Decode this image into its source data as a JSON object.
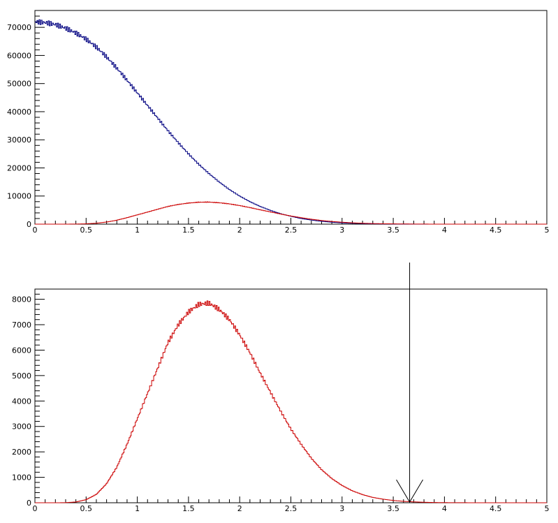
{
  "chart_data": [
    {
      "type": "line",
      "style": "step-histogram",
      "grid": false,
      "legend": "none",
      "xlim": [
        0,
        5
      ],
      "ylim": [
        0,
        76000
      ],
      "x_ticks": [
        0,
        0.5,
        1,
        1.5,
        2,
        2.5,
        3,
        3.5,
        4,
        4.5,
        5
      ],
      "x_tick_labels": [
        "0",
        "0.5",
        "1",
        "1.5",
        "2",
        "2.5",
        "3",
        "3.5",
        "4",
        "4.5",
        "5"
      ],
      "y_ticks": [
        0,
        10000,
        20000,
        30000,
        40000,
        50000,
        60000,
        70000
      ],
      "y_tick_labels": [
        "0",
        "10000",
        "20000",
        "30000",
        "40000",
        "50000",
        "60000",
        "70000"
      ],
      "series": [
        {
          "color": "#000080",
          "x": [
            0,
            0.1,
            0.2,
            0.3,
            0.4,
            0.5,
            0.6,
            0.7,
            0.8,
            0.9,
            1.0,
            1.1,
            1.2,
            1.3,
            1.4,
            1.5,
            1.6,
            1.7,
            1.8,
            1.9,
            2.0,
            2.1,
            2.2,
            2.3,
            2.4,
            2.5,
            2.6,
            2.7,
            2.8,
            2.9,
            3.0,
            3.1,
            3.2,
            3.3,
            3.4,
            3.5,
            3.6,
            3.7,
            3.8,
            3.9
          ],
          "values": [
            72000,
            71700,
            71000,
            69700,
            68000,
            65800,
            63000,
            59500,
            55500,
            51200,
            46700,
            42200,
            37700,
            33200,
            29000,
            25000,
            21300,
            18000,
            15000,
            12300,
            10000,
            8000,
            6300,
            4900,
            3700,
            2800,
            2000,
            1450,
            1000,
            680,
            450,
            300,
            190,
            120,
            75,
            45,
            25,
            15,
            8,
            4
          ]
        },
        {
          "color": "#cc0000",
          "x": [
            0.3,
            0.4,
            0.5,
            0.6,
            0.7,
            0.8,
            0.9,
            1.0,
            1.1,
            1.2,
            1.3,
            1.4,
            1.5,
            1.6,
            1.7,
            1.8,
            1.9,
            2.0,
            2.1,
            2.2,
            2.3,
            2.4,
            2.5,
            2.6,
            2.7,
            2.8,
            2.9,
            3.0,
            3.1,
            3.2,
            3.3,
            3.4,
            3.5,
            3.6,
            3.7,
            3.8,
            3.9
          ],
          "values": [
            5,
            30,
            120,
            330,
            750,
            1400,
            2300,
            3300,
            4300,
            5300,
            6300,
            7000,
            7500,
            7800,
            7850,
            7600,
            7200,
            6600,
            5900,
            5100,
            4350,
            3600,
            2900,
            2300,
            1750,
            1300,
            950,
            680,
            470,
            320,
            210,
            140,
            90,
            55,
            35,
            20,
            10
          ]
        }
      ]
    },
    {
      "type": "line",
      "style": "step-histogram",
      "grid": false,
      "legend": "none",
      "xlim": [
        0,
        5
      ],
      "ylim": [
        0,
        8400
      ],
      "x_ticks": [
        0,
        0.5,
        1,
        1.5,
        2,
        2.5,
        3,
        3.5,
        4,
        4.5,
        5
      ],
      "x_tick_labels": [
        "0",
        "0.5",
        "1",
        "1.5",
        "2",
        "2.5",
        "3",
        "3.5",
        "4",
        "4.5",
        "5"
      ],
      "y_ticks": [
        0,
        1000,
        2000,
        3000,
        4000,
        5000,
        6000,
        7000,
        8000
      ],
      "y_tick_labels": [
        "0",
        "1000",
        "2000",
        "3000",
        "4000",
        "5000",
        "6000",
        "7000",
        "8000"
      ],
      "series": [
        {
          "color": "#cc0000",
          "x": [
            0.3,
            0.4,
            0.5,
            0.6,
            0.7,
            0.8,
            0.9,
            1.0,
            1.1,
            1.2,
            1.3,
            1.4,
            1.5,
            1.6,
            1.7,
            1.8,
            1.9,
            2.0,
            2.1,
            2.2,
            2.3,
            2.4,
            2.5,
            2.6,
            2.7,
            2.8,
            2.9,
            3.0,
            3.1,
            3.2,
            3.3,
            3.4,
            3.5,
            3.6,
            3.7,
            3.8,
            3.9,
            4.0,
            4.1,
            4.2,
            4.3
          ],
          "values": [
            5,
            30,
            120,
            330,
            750,
            1400,
            2300,
            3300,
            4300,
            5300,
            6300,
            7000,
            7500,
            7800,
            7850,
            7600,
            7200,
            6600,
            5900,
            5100,
            4350,
            3600,
            2900,
            2300,
            1750,
            1300,
            950,
            680,
            470,
            320,
            210,
            140,
            90,
            55,
            35,
            20,
            10,
            6,
            3,
            2,
            1
          ]
        }
      ],
      "annotations": [
        {
          "type": "cut-line-with-arrow",
          "x": 3.66
        }
      ]
    }
  ]
}
